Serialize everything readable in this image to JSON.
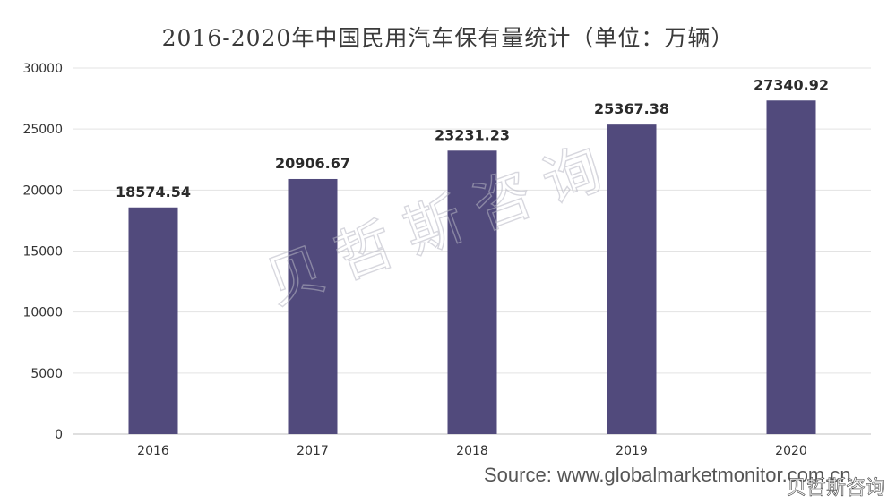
{
  "chart_data": {
    "type": "bar",
    "title": "2016-2020年中国民用汽车保有量统计（单位：万辆）",
    "categories": [
      "2016",
      "2017",
      "2018",
      "2019",
      "2020"
    ],
    "values": [
      18574.54,
      20906.67,
      23231.23,
      25367.38,
      27340.92
    ],
    "data_labels": [
      "18574.54",
      "20906.67",
      "23231.23",
      "25367.38",
      "27340.92"
    ],
    "ylim": [
      0,
      30000
    ],
    "yticks": [
      0,
      5000,
      10000,
      15000,
      20000,
      25000,
      30000
    ],
    "xlabel": "",
    "ylabel": "",
    "grid": true,
    "legend": "none",
    "bar_color": "#514a7c"
  },
  "source": "Source: www.globalmarketmonitor.com.cn",
  "watermark": "贝哲斯咨询",
  "weibo_mark": "贝哲斯咨询"
}
